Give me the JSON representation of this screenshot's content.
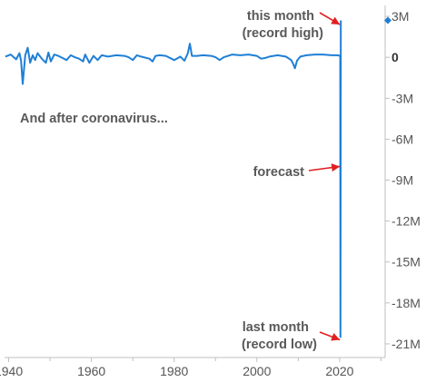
{
  "chart_data": {
    "type": "line",
    "title": "",
    "xlabel": "",
    "ylabel": "",
    "xlim": [
      1939,
      2031
    ],
    "ylim": [
      -22000000,
      3800000
    ],
    "x_ticks": [
      {
        "value": 1940,
        "label": "1940"
      },
      {
        "value": 1960,
        "label": "1960"
      },
      {
        "value": 1980,
        "label": "1980"
      },
      {
        "value": 2000,
        "label": "2000"
      },
      {
        "value": 2020,
        "label": "2020"
      }
    ],
    "y_ticks": [
      {
        "value": 3000000,
        "label": "3M"
      },
      {
        "value": 0,
        "label": "0"
      },
      {
        "value": -3000000,
        "label": "-3M"
      },
      {
        "value": -6000000,
        "label": "-6M"
      },
      {
        "value": -9000000,
        "label": "-9M"
      },
      {
        "value": -12000000,
        "label": "-12M"
      },
      {
        "value": -15000000,
        "label": "-15M"
      },
      {
        "value": -18000000,
        "label": "-18M"
      },
      {
        "value": -21000000,
        "label": "-21M"
      }
    ],
    "grid": false,
    "line_color": "#1f7fd6",
    "arrow_color": "#e02020",
    "series": [
      {
        "x": [
          1939.2,
          1940.5,
          1941.8,
          1942.6,
          1943.0,
          1943.4,
          1944.0,
          1944.6,
          1945.2,
          1945.8,
          1946.4,
          1947.0,
          1948.0,
          1949.0,
          1949.6,
          1950.2,
          1951.0,
          1952.0,
          1953.0,
          1954.0,
          1955.0,
          1956.0,
          1957.0,
          1958.0,
          1958.5,
          1959.5,
          1960.5,
          1961.5,
          1962.5,
          1964.0,
          1966.0,
          1968.0,
          1969.0,
          1970.0,
          1971.0,
          1972.0,
          1974.0,
          1974.8,
          1975.5,
          1976.5,
          1978.0,
          1980.0,
          1980.6,
          1981.5,
          1982.5,
          1983.3,
          1983.8,
          1984.3,
          1985.5,
          1987.0,
          1989.0,
          1990.0,
          1991.0,
          1992.0,
          1994.0,
          1996.0,
          1998.0,
          2000.0,
          2001.0,
          2002.0,
          2003.0,
          2005.0,
          2007.0,
          2008.3,
          2008.8,
          2009.2,
          2009.7,
          2010.5,
          2012.0,
          2014.0,
          2016.0,
          2018.0,
          2019.5,
          2020.15,
          2020.2,
          2020.28
        ],
        "y": [
          50000,
          200000,
          -150000,
          300000,
          -250000,
          -1950000,
          150000,
          700000,
          -400000,
          150000,
          -200000,
          300000,
          -100000,
          -400000,
          350000,
          -300000,
          200000,
          100000,
          -50000,
          -200000,
          150000,
          0,
          -100000,
          -300000,
          200000,
          -400000,
          100000,
          -200000,
          150000,
          50000,
          150000,
          100000,
          0,
          -200000,
          150000,
          50000,
          -100000,
          -300000,
          100000,
          150000,
          100000,
          -200000,
          -100000,
          50000,
          -250000,
          300000,
          1000000,
          100000,
          100000,
          150000,
          100000,
          0,
          -200000,
          0,
          200000,
          150000,
          200000,
          100000,
          -100000,
          -50000,
          50000,
          150000,
          50000,
          -200000,
          -500000,
          -800000,
          -250000,
          50000,
          150000,
          200000,
          200000,
          150000,
          150000,
          100000,
          -20500000,
          2700000
        ],
        "style": "monthly change"
      }
    ],
    "forecast_level": -8000000,
    "annotations": [
      {
        "id": "this_month",
        "lines": [
          "this month",
          "(record high)"
        ]
      },
      {
        "id": "forecast",
        "lines": [
          "forecast"
        ]
      },
      {
        "id": "last_month",
        "lines": [
          "last month",
          "(record low)"
        ]
      },
      {
        "id": "note",
        "lines": [
          "And after coronavirus..."
        ]
      }
    ]
  }
}
